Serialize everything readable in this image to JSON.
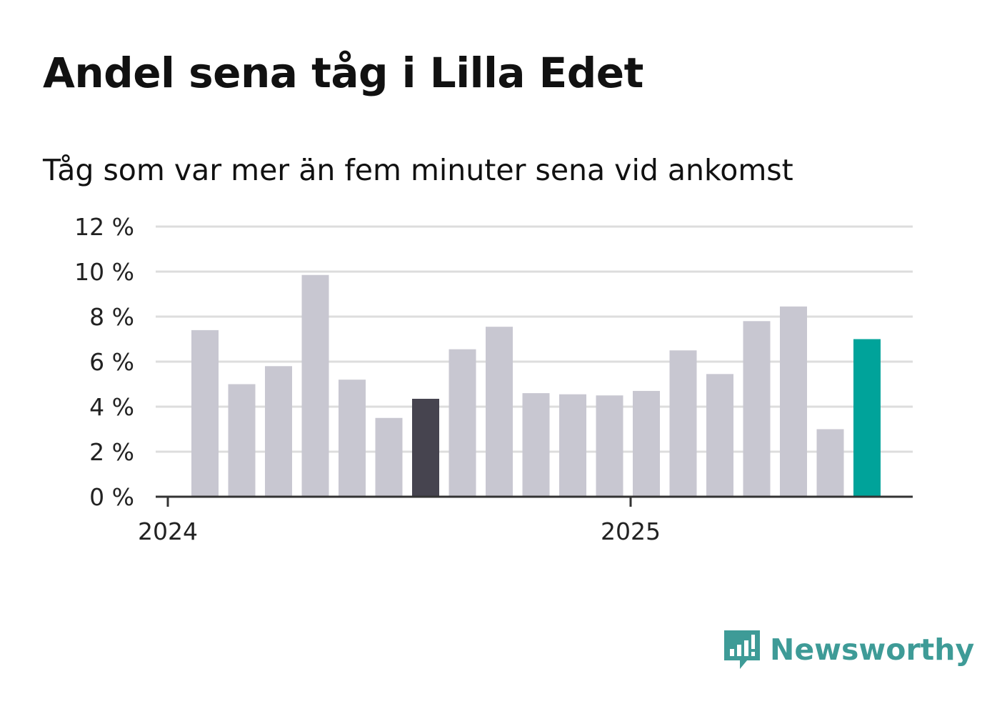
{
  "title": "Andel sena tåg i Lilla Edet",
  "subtitle": "Tåg som var mer än fem minuter sena vid ankomst",
  "brand": {
    "name": "Newsworthy",
    "icon": "bar-chart-speech-bubble-icon"
  },
  "colors": {
    "bar_default": "#c8c7d1",
    "bar_highlight_dark": "#46444f",
    "bar_highlight_accent": "#00a39a",
    "grid": "#dddddd",
    "axis": "#333333",
    "brand": "#3e9b97"
  },
  "chart_data": {
    "type": "bar",
    "title": "Andel sena tåg i Lilla Edet",
    "subtitle": "Tåg som var mer än fem minuter sena vid ankomst",
    "xlabel": "",
    "ylabel": "",
    "categories": [
      "2024-01",
      "2024-02",
      "2024-03",
      "2024-04",
      "2024-05",
      "2024-06",
      "2024-07",
      "2024-08",
      "2024-09",
      "2024-10",
      "2024-11",
      "2024-12",
      "2025-01",
      "2025-02",
      "2025-03",
      "2025-04",
      "2025-05",
      "2025-06",
      "2025-07",
      "2025-08"
    ],
    "values": [
      7.4,
      5.0,
      5.8,
      9.85,
      5.2,
      3.5,
      4.35,
      6.55,
      7.55,
      4.6,
      4.55,
      4.5,
      4.7,
      6.5,
      5.45,
      7.8,
      8.45,
      3.0,
      7.0,
      null
    ],
    "highlight": {
      "2024-07": "dark",
      "2025-07": "accent"
    },
    "ylim": [
      0,
      12
    ],
    "yticks": [
      0,
      2,
      4,
      6,
      8,
      10,
      12
    ],
    "ytick_labels": [
      "0 %",
      "2 %",
      "4 %",
      "6 %",
      "8 %",
      "10 %",
      "12 %"
    ],
    "xtick_labels": [
      {
        "label": "2024",
        "at": "2024-01"
      },
      {
        "label": "2025",
        "at": "2025-01"
      }
    ],
    "grid": true,
    "legend": "none"
  }
}
